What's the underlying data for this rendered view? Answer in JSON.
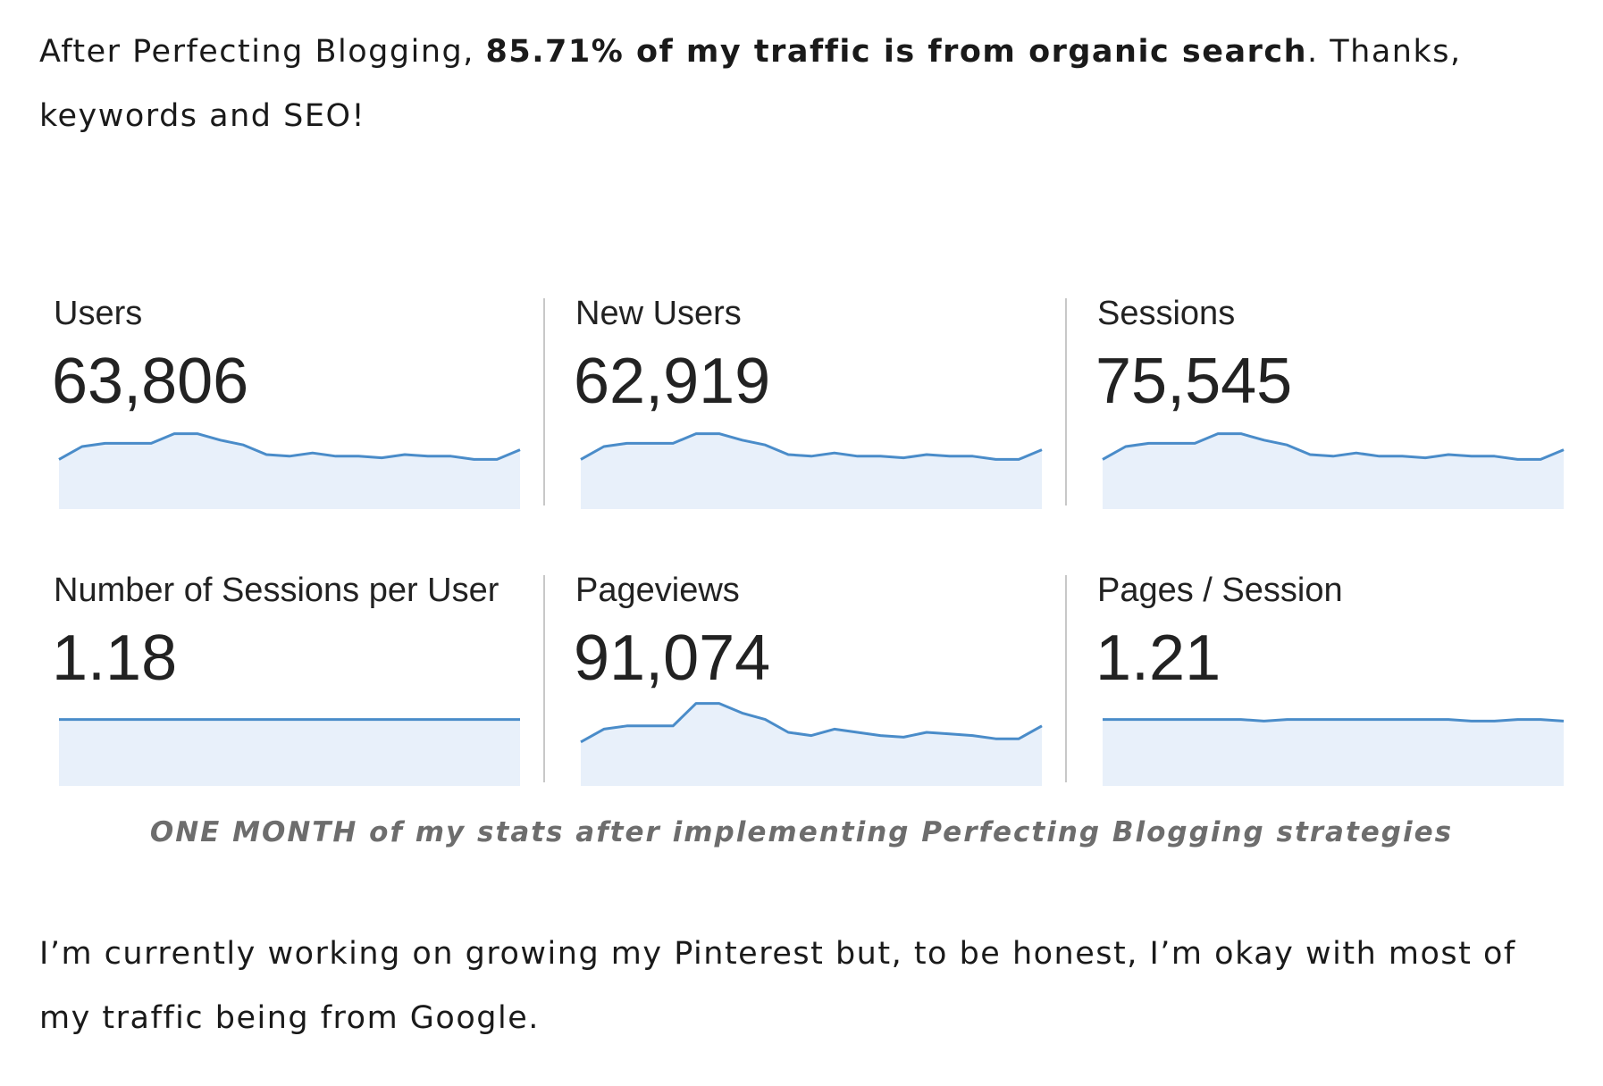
{
  "intro": {
    "before": "After Perfecting Blogging, ",
    "bold": "85.71% of my traffic is from organic search",
    "after": ". Thanks, keywords and SEO!"
  },
  "stats": [
    {
      "label": "Users",
      "value": "63,806"
    },
    {
      "label": "New Users",
      "value": "62,919"
    },
    {
      "label": "Sessions",
      "value": "75,545"
    },
    {
      "label": "Number of Sessions per User",
      "value": "1.18"
    },
    {
      "label": "Pageviews",
      "value": "91,074"
    },
    {
      "label": "Pages / Session",
      "value": "1.21"
    }
  ],
  "caption": "ONE MONTH of my stats after implementing Perfecting Blogging strategies",
  "outro": "I’m currently working on growing my Pinterest but, to be honest, I’m okay with most of my traffic being from Google.",
  "colors": {
    "sparkline_line": "#4a8cc9",
    "sparkline_fill": "#e8f0fa",
    "divider": "#c8c8c8",
    "caption": "#6d6d6d"
  }
}
